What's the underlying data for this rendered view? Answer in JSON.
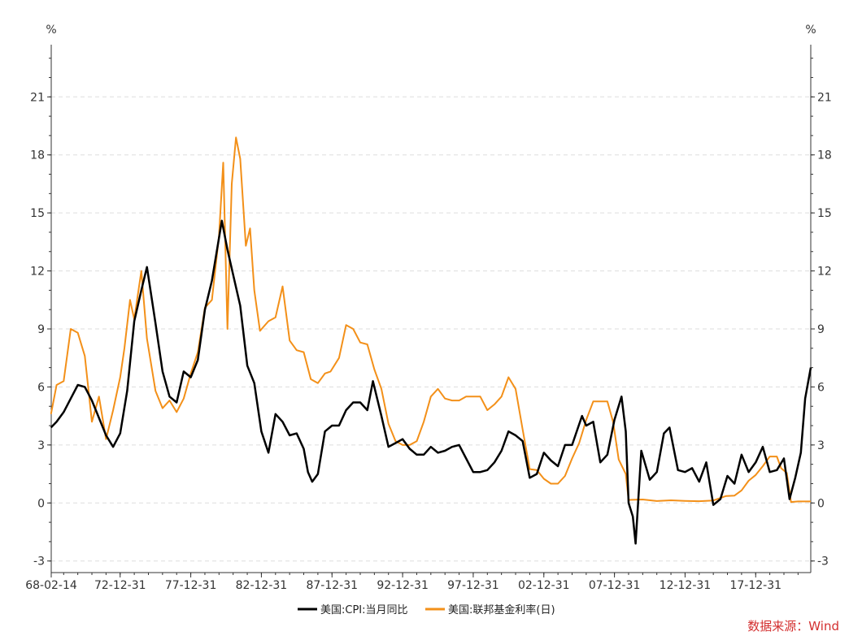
{
  "chart_data": {
    "type": "line",
    "y_unit_left": "%",
    "y_unit_right": "%",
    "ylim": [
      -3.6,
      23.7
    ],
    "yticks": [
      -3,
      0,
      3,
      6,
      9,
      12,
      15,
      18,
      21
    ],
    "grid": "horizontal dashed",
    "legend_position": "bottom-center",
    "x_tick_labels": [
      "68-02-14",
      "72-12-31",
      "77-12-31",
      "82-12-31",
      "87-12-31",
      "92-12-31",
      "97-12-31",
      "02-12-31",
      "07-12-31",
      "12-12-31",
      "17-12-31"
    ],
    "x_tick_years": [
      1968.12,
      1973.0,
      1978.0,
      1983.0,
      1988.0,
      1993.0,
      1998.0,
      2003.0,
      2008.0,
      2013.0,
      2018.0
    ],
    "xlim": [
      1968.12,
      2021.9
    ],
    "series": [
      {
        "name": "美国:CPI:当月同比",
        "color": "#000000",
        "x": [
          1968.1,
          1968.5,
          1969.0,
          1969.5,
          1970.0,
          1970.5,
          1971.0,
          1971.5,
          1972.0,
          1972.5,
          1973.0,
          1973.5,
          1974.0,
          1974.5,
          1974.9,
          1975.5,
          1976.0,
          1976.5,
          1977.0,
          1977.5,
          1978.0,
          1978.5,
          1979.0,
          1979.5,
          1980.2,
          1980.6,
          1981.0,
          1981.5,
          1982.0,
          1982.5,
          1983.0,
          1983.5,
          1984.0,
          1984.5,
          1985.0,
          1985.5,
          1986.0,
          1986.3,
          1986.6,
          1987.0,
          1987.5,
          1988.0,
          1988.5,
          1989.0,
          1989.5,
          1990.0,
          1990.5,
          1990.9,
          1991.5,
          1992.0,
          1992.5,
          1993.0,
          1993.5,
          1994.0,
          1994.5,
          1995.0,
          1995.5,
          1996.0,
          1996.5,
          1997.0,
          1997.5,
          1998.0,
          1998.5,
          1999.0,
          1999.5,
          2000.0,
          2000.5,
          2001.0,
          2001.5,
          2002.0,
          2002.5,
          2003.0,
          2003.5,
          2004.0,
          2004.5,
          2005.0,
          2005.7,
          2006.0,
          2006.5,
          2007.0,
          2007.5,
          2008.0,
          2008.5,
          2008.8,
          2009.0,
          2009.3,
          2009.5,
          2009.9,
          2010.5,
          2011.0,
          2011.5,
          2011.9,
          2012.5,
          2013.0,
          2013.5,
          2014.0,
          2014.5,
          2015.0,
          2015.5,
          2016.0,
          2016.5,
          2017.0,
          2017.5,
          2018.0,
          2018.5,
          2019.0,
          2019.5,
          2020.0,
          2020.4,
          2020.8,
          2021.2,
          2021.5,
          2021.9
        ],
        "values": [
          3.9,
          4.2,
          4.7,
          5.4,
          6.1,
          6.0,
          5.3,
          4.4,
          3.5,
          2.9,
          3.6,
          5.8,
          9.4,
          11.0,
          12.2,
          9.3,
          6.8,
          5.5,
          5.2,
          6.8,
          6.5,
          7.4,
          10.0,
          11.5,
          14.6,
          13.1,
          11.8,
          10.2,
          7.1,
          6.2,
          3.7,
          2.6,
          4.6,
          4.2,
          3.5,
          3.6,
          2.8,
          1.6,
          1.1,
          1.5,
          3.7,
          4.0,
          4.0,
          4.8,
          5.2,
          5.2,
          4.8,
          6.3,
          4.5,
          2.9,
          3.1,
          3.3,
          2.8,
          2.5,
          2.5,
          2.9,
          2.6,
          2.7,
          2.9,
          3.0,
          2.3,
          1.6,
          1.6,
          1.7,
          2.1,
          2.7,
          3.7,
          3.5,
          3.2,
          1.3,
          1.5,
          2.6,
          2.2,
          1.9,
          3.0,
          3.0,
          4.5,
          4.0,
          4.2,
          2.1,
          2.5,
          4.3,
          5.5,
          3.7,
          0.0,
          -0.7,
          -2.1,
          2.7,
          1.2,
          1.6,
          3.6,
          3.9,
          1.7,
          1.6,
          1.8,
          1.1,
          2.1,
          -0.1,
          0.2,
          1.4,
          1.0,
          2.5,
          1.6,
          2.1,
          2.9,
          1.6,
          1.7,
          2.3,
          0.2,
          1.3,
          2.6,
          5.4,
          7.0
        ]
      },
      {
        "name": "美国:联邦基金利率(日)",
        "color": "#f39019",
        "x": [
          1968.1,
          1968.5,
          1969.0,
          1969.5,
          1970.0,
          1970.5,
          1971.0,
          1971.5,
          1972.0,
          1972.5,
          1973.0,
          1973.3,
          1973.7,
          1974.0,
          1974.5,
          1974.9,
          1975.5,
          1976.0,
          1976.5,
          1977.0,
          1977.5,
          1978.0,
          1978.5,
          1979.0,
          1979.5,
          1980.0,
          1980.3,
          1980.6,
          1980.9,
          1981.2,
          1981.5,
          1981.9,
          1982.2,
          1982.5,
          1982.9,
          1983.5,
          1984.0,
          1984.5,
          1985.0,
          1985.5,
          1986.0,
          1986.5,
          1987.0,
          1987.5,
          1987.9,
          1988.5,
          1989.0,
          1989.5,
          1990.0,
          1990.5,
          1991.0,
          1991.5,
          1992.0,
          1992.5,
          1993.0,
          1993.5,
          1994.0,
          1994.5,
          1995.0,
          1995.5,
          1996.0,
          1996.5,
          1997.0,
          1997.5,
          1998.0,
          1998.5,
          1999.0,
          1999.5,
          2000.0,
          2000.5,
          2001.0,
          2001.5,
          2002.0,
          2002.5,
          2003.0,
          2003.5,
          2004.0,
          2004.5,
          2005.0,
          2005.5,
          2006.0,
          2006.5,
          2007.0,
          2007.5,
          2007.9,
          2008.3,
          2008.8,
          2009.0,
          2010.0,
          2011.0,
          2012.0,
          2013.0,
          2014.0,
          2015.0,
          2015.9,
          2016.5,
          2017.0,
          2017.5,
          2018.0,
          2018.5,
          2019.0,
          2019.5,
          2019.8,
          2020.2,
          2020.5,
          2021.0,
          2021.9
        ],
        "values": [
          4.6,
          6.1,
          6.3,
          9.0,
          8.8,
          7.6,
          4.2,
          5.5,
          3.3,
          4.8,
          6.5,
          8.0,
          10.5,
          9.5,
          12.0,
          8.5,
          5.8,
          4.9,
          5.3,
          4.7,
          5.4,
          6.7,
          7.8,
          10.1,
          10.5,
          13.8,
          17.6,
          9.0,
          16.5,
          18.9,
          17.8,
          13.3,
          14.2,
          11.0,
          8.9,
          9.4,
          9.6,
          11.2,
          8.4,
          7.9,
          7.8,
          6.4,
          6.2,
          6.7,
          6.8,
          7.5,
          9.2,
          9.0,
          8.3,
          8.2,
          6.9,
          5.9,
          4.1,
          3.2,
          3.0,
          3.0,
          3.2,
          4.2,
          5.5,
          5.9,
          5.4,
          5.3,
          5.3,
          5.5,
          5.5,
          5.5,
          4.8,
          5.1,
          5.5,
          6.5,
          5.9,
          3.8,
          1.75,
          1.7,
          1.25,
          1.0,
          1.0,
          1.4,
          2.3,
          3.1,
          4.3,
          5.25,
          5.25,
          5.25,
          4.2,
          2.25,
          1.5,
          0.16,
          0.18,
          0.1,
          0.14,
          0.11,
          0.09,
          0.13,
          0.36,
          0.38,
          0.65,
          1.15,
          1.45,
          1.9,
          2.4,
          2.4,
          1.8,
          1.55,
          0.05,
          0.08,
          0.08
        ]
      }
    ]
  },
  "source_label": "数据来源：Wind"
}
